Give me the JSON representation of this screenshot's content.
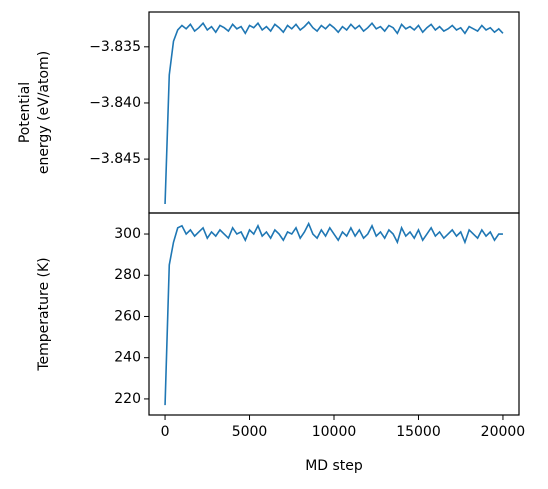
{
  "chart_data": [
    {
      "type": "line",
      "ylabel": [
        "Potential",
        "energy (eV/atom)"
      ],
      "color": "#1f77b4",
      "x": [
        0,
        250,
        500,
        750,
        1000,
        1250,
        1500,
        1750,
        2000,
        2250,
        2500,
        2750,
        3000,
        3250,
        3500,
        3750,
        4000,
        4250,
        4500,
        4750,
        5000,
        5250,
        5500,
        5750,
        6000,
        6250,
        6500,
        6750,
        7000,
        7250,
        7500,
        7750,
        8000,
        8250,
        8500,
        8750,
        9000,
        9250,
        9500,
        9750,
        10000,
        10250,
        10500,
        10750,
        11000,
        11250,
        11500,
        11750,
        12000,
        12250,
        12500,
        12750,
        13000,
        13250,
        13500,
        13750,
        14000,
        14250,
        14500,
        14750,
        15000,
        15250,
        15500,
        15750,
        16000,
        16250,
        16500,
        16750,
        17000,
        17250,
        17500,
        17750,
        18000,
        18250,
        18500,
        18750,
        19000,
        19250,
        19500,
        19750,
        20000
      ],
      "values": [
        -3.849,
        -3.8375,
        -3.8345,
        -3.8335,
        -3.8331,
        -3.8334,
        -3.833,
        -3.8336,
        -3.8333,
        -3.8329,
        -3.8335,
        -3.8332,
        -3.8337,
        -3.8331,
        -3.8333,
        -3.8336,
        -3.833,
        -3.8334,
        -3.8332,
        -3.8338,
        -3.8331,
        -3.8333,
        -3.8329,
        -3.8335,
        -3.8332,
        -3.8336,
        -3.833,
        -3.8333,
        -3.8337,
        -3.8331,
        -3.8334,
        -3.833,
        -3.8335,
        -3.8332,
        -3.8328,
        -3.8333,
        -3.8336,
        -3.8331,
        -3.8334,
        -3.833,
        -3.8333,
        -3.8337,
        -3.8332,
        -3.8335,
        -3.833,
        -3.8334,
        -3.8331,
        -3.8336,
        -3.8333,
        -3.8329,
        -3.8334,
        -3.8332,
        -3.8336,
        -3.8331,
        -3.8333,
        -3.8338,
        -3.833,
        -3.8334,
        -3.8332,
        -3.8335,
        -3.8331,
        -3.8337,
        -3.8333,
        -3.833,
        -3.8335,
        -3.8332,
        -3.8336,
        -3.8334,
        -3.8331,
        -3.8335,
        -3.8333,
        -3.8338,
        -3.8332,
        -3.8334,
        -3.8336,
        -3.8331,
        -3.8335,
        -3.8333,
        -3.8337,
        -3.8334,
        -3.8338
      ],
      "xlim": [
        -950,
        20950
      ],
      "ylim": [
        -3.8498,
        -3.8319
      ],
      "yticks": [
        {
          "value": -3.845,
          "label": "−3.845"
        },
        {
          "value": -3.84,
          "label": "−3.840"
        },
        {
          "value": -3.835,
          "label": "−3.835"
        }
      ]
    },
    {
      "type": "line",
      "ylabel": [
        "Temperature (K)"
      ],
      "xlabel": "MD step",
      "color": "#1f77b4",
      "x": [
        0,
        250,
        500,
        750,
        1000,
        1250,
        1500,
        1750,
        2000,
        2250,
        2500,
        2750,
        3000,
        3250,
        3500,
        3750,
        4000,
        4250,
        4500,
        4750,
        5000,
        5250,
        5500,
        5750,
        6000,
        6250,
        6500,
        6750,
        7000,
        7250,
        7500,
        7750,
        8000,
        8250,
        8500,
        8750,
        9000,
        9250,
        9500,
        9750,
        10000,
        10250,
        10500,
        10750,
        11000,
        11250,
        11500,
        11750,
        12000,
        12250,
        12500,
        12750,
        13000,
        13250,
        13500,
        13750,
        14000,
        14250,
        14500,
        14750,
        15000,
        15250,
        15500,
        15750,
        16000,
        16250,
        16500,
        16750,
        17000,
        17250,
        17500,
        17750,
        18000,
        18250,
        18500,
        18750,
        19000,
        19250,
        19500,
        19750,
        20000
      ],
      "values": [
        217,
        285,
        296,
        303,
        304,
        300,
        302,
        299,
        301,
        303,
        298,
        301,
        299,
        302,
        300,
        298,
        303,
        300,
        301,
        297,
        302,
        300,
        304,
        299,
        301,
        298,
        302,
        300,
        297,
        301,
        300,
        303,
        298,
        301,
        305,
        300,
        298,
        302,
        299,
        303,
        300,
        297,
        301,
        299,
        303,
        299,
        302,
        298,
        300,
        304,
        299,
        301,
        298,
        302,
        300,
        296,
        303,
        299,
        301,
        298,
        302,
        297,
        300,
        303,
        299,
        301,
        298,
        300,
        302,
        299,
        301,
        296,
        302,
        300,
        298,
        302,
        299,
        301,
        297,
        300,
        300
      ],
      "xlim": [
        -950,
        20950
      ],
      "ylim": [
        212.2,
        310.2
      ],
      "xticks": [
        0,
        5000,
        10000,
        15000,
        20000
      ],
      "yticks": [
        220,
        240,
        260,
        280,
        300
      ]
    }
  ]
}
